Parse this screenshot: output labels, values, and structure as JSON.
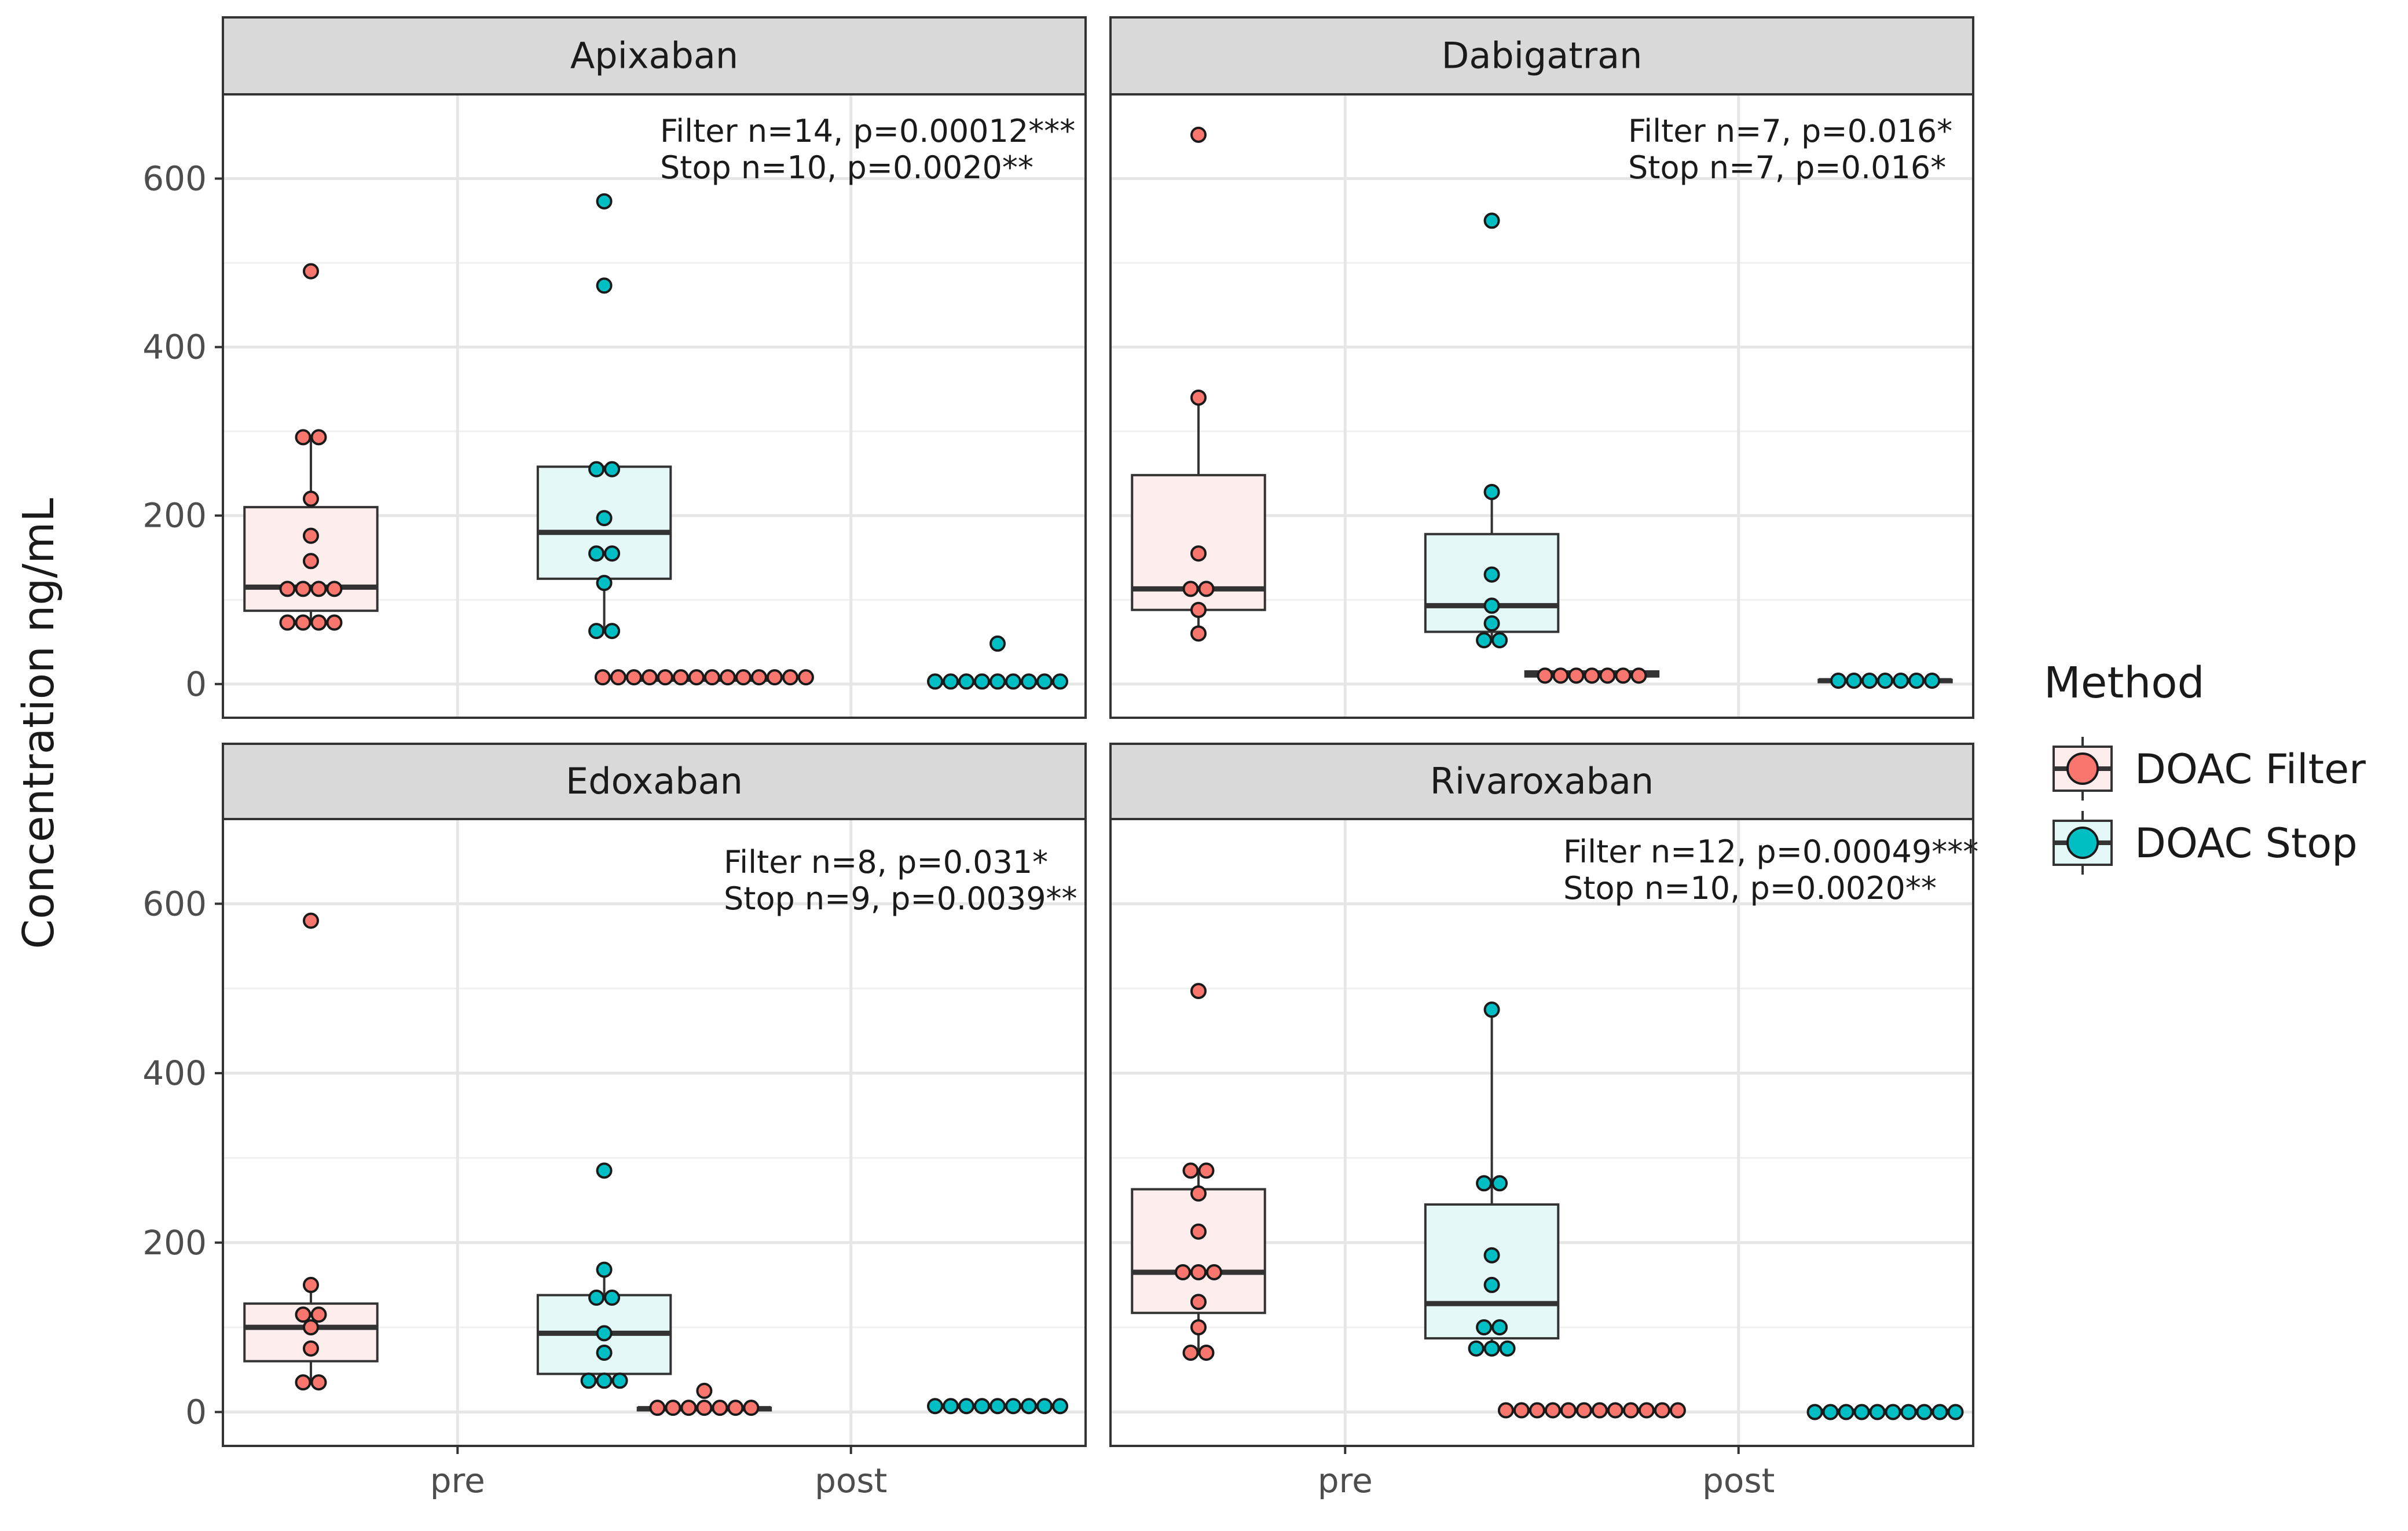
{
  "chart_data": {
    "type": "box",
    "ylabel": "Concentration ng/mL",
    "xlabel": "",
    "categories": [
      "pre",
      "post"
    ],
    "ylim": [
      -40,
      700
    ],
    "yticks": [
      0,
      200,
      400,
      600
    ],
    "legend": {
      "title": "Method",
      "placement": "right",
      "entries": [
        {
          "name": "DOAC Filter",
          "point_color": "#f8766d",
          "box_fill": "#fdeeed"
        },
        {
          "name": "DOAC Stop",
          "point_color": "#00bfc4",
          "box_fill": "#e5f8f8"
        }
      ]
    },
    "panels": [
      {
        "name": "Apixaban",
        "annotations": [
          "Filter n=14, p=0.00012***",
          "Stop n=10, p=0.0020**"
        ],
        "groups": [
          {
            "category": "pre",
            "method": "DOAC Filter",
            "box": {
              "q1": 87,
              "median": 115,
              "q3": 210,
              "whisker_low": 72,
              "whisker_high": 292
            },
            "points": [
              490,
              293,
              293,
              220,
              176,
              146,
              113,
              113,
              113,
              113,
              73,
              73,
              73,
              73
            ]
          },
          {
            "category": "pre",
            "method": "DOAC Stop",
            "box": {
              "q1": 125,
              "median": 180,
              "q3": 258,
              "whisker_low": 63,
              "whisker_high": 258
            },
            "points": [
              573,
              473,
              255,
              255,
              197,
              155,
              155,
              120,
              63,
              63
            ]
          },
          {
            "category": "post",
            "method": "DOAC Filter",
            "box": {
              "q1": 4,
              "median": 6,
              "q3": 8,
              "whisker_low": 4,
              "whisker_high": 8
            },
            "points": [
              8,
              8,
              8,
              8,
              8,
              8,
              8,
              8,
              8,
              8,
              8,
              8,
              8,
              8
            ]
          },
          {
            "category": "post",
            "method": "DOAC Stop",
            "box": {
              "q1": 1,
              "median": 2,
              "q3": 3,
              "whisker_low": 1,
              "whisker_high": 3
            },
            "points": [
              48,
              3,
              3,
              3,
              3,
              3,
              3,
              3,
              3,
              3
            ]
          }
        ]
      },
      {
        "name": "Dabigatran",
        "annotations": [
          "Filter n=7, p=0.016*",
          "Stop n=7, p=0.016*"
        ],
        "groups": [
          {
            "category": "pre",
            "method": "DOAC Filter",
            "box": {
              "q1": 88,
              "median": 113,
              "q3": 248,
              "whisker_low": 58,
              "whisker_high": 340
            },
            "points": [
              652,
              340,
              155,
              113,
              113,
              88,
              60
            ]
          },
          {
            "category": "pre",
            "method": "DOAC Stop",
            "box": {
              "q1": 62,
              "median": 93,
              "q3": 178,
              "whisker_low": 50,
              "whisker_high": 228
            },
            "points": [
              550,
              228,
              130,
              93,
              72,
              52,
              52
            ]
          },
          {
            "category": "post",
            "method": "DOAC Filter",
            "box": {
              "q1": 9,
              "median": 12,
              "q3": 15,
              "whisker_low": 9,
              "whisker_high": 15
            },
            "points": [
              10,
              10,
              10,
              10,
              10,
              10,
              10
            ]
          },
          {
            "category": "post",
            "method": "DOAC Stop",
            "box": {
              "q1": 3,
              "median": 4,
              "q3": 5,
              "whisker_low": 3,
              "whisker_high": 5
            },
            "points": [
              4,
              4,
              4,
              4,
              4,
              4,
              4
            ]
          }
        ]
      },
      {
        "name": "Edoxaban",
        "annotations": [
          "Filter n=8, p=0.031*",
          "Stop n=9, p=0.0039**"
        ],
        "groups": [
          {
            "category": "pre",
            "method": "DOAC Filter",
            "box": {
              "q1": 60,
              "median": 100,
              "q3": 128,
              "whisker_low": 33,
              "whisker_high": 150
            },
            "points": [
              580,
              150,
              115,
              115,
              100,
              75,
              35,
              35
            ]
          },
          {
            "category": "pre",
            "method": "DOAC Stop",
            "box": {
              "q1": 45,
              "median": 93,
              "q3": 138,
              "whisker_low": 37,
              "whisker_high": 168
            },
            "points": [
              285,
              168,
              135,
              135,
              93,
              70,
              37,
              37,
              37
            ]
          },
          {
            "category": "post",
            "method": "DOAC Filter",
            "box": {
              "q1": 2,
              "median": 4,
              "q3": 5,
              "whisker_low": 2,
              "whisker_high": 5
            },
            "points": [
              25,
              5,
              5,
              5,
              5,
              5,
              5,
              5
            ]
          },
          {
            "category": "post",
            "method": "DOAC Stop",
            "box": {
              "q1": 5,
              "median": 7,
              "q3": 8,
              "whisker_low": 5,
              "whisker_high": 8
            },
            "points": [
              7,
              7,
              7,
              7,
              7,
              7,
              7,
              7,
              7
            ]
          }
        ]
      },
      {
        "name": "Rivaroxaban",
        "annotations": [
          "Filter n=12, p=0.00049***",
          "Stop n=10, p=0.0020**"
        ],
        "groups": [
          {
            "category": "pre",
            "method": "DOAC Filter",
            "box": {
              "q1": 117,
              "median": 165,
              "q3": 263,
              "whisker_low": 68,
              "whisker_high": 283
            },
            "points": [
              497,
              285,
              285,
              258,
              213,
              165,
              165,
              165,
              130,
              100,
              70,
              70
            ]
          },
          {
            "category": "pre",
            "method": "DOAC Stop",
            "box": {
              "q1": 87,
              "median": 128,
              "q3": 245,
              "whisker_low": 72,
              "whisker_high": 475
            },
            "points": [
              475,
              270,
              270,
              185,
              150,
              100,
              100,
              75,
              75,
              75
            ]
          },
          {
            "category": "post",
            "method": "DOAC Filter",
            "box": {
              "q1": 1,
              "median": 2,
              "q3": 3,
              "whisker_low": 1,
              "whisker_high": 3
            },
            "points": [
              2,
              2,
              2,
              2,
              2,
              2,
              2,
              2,
              2,
              2,
              2,
              2
            ]
          },
          {
            "category": "post",
            "method": "DOAC Stop",
            "box": {
              "q1": 0,
              "median": 1,
              "q3": 1,
              "whisker_low": 0,
              "whisker_high": 1
            },
            "points": [
              0,
              0,
              0,
              0,
              0,
              0,
              0,
              0,
              0,
              0
            ]
          }
        ]
      }
    ]
  }
}
